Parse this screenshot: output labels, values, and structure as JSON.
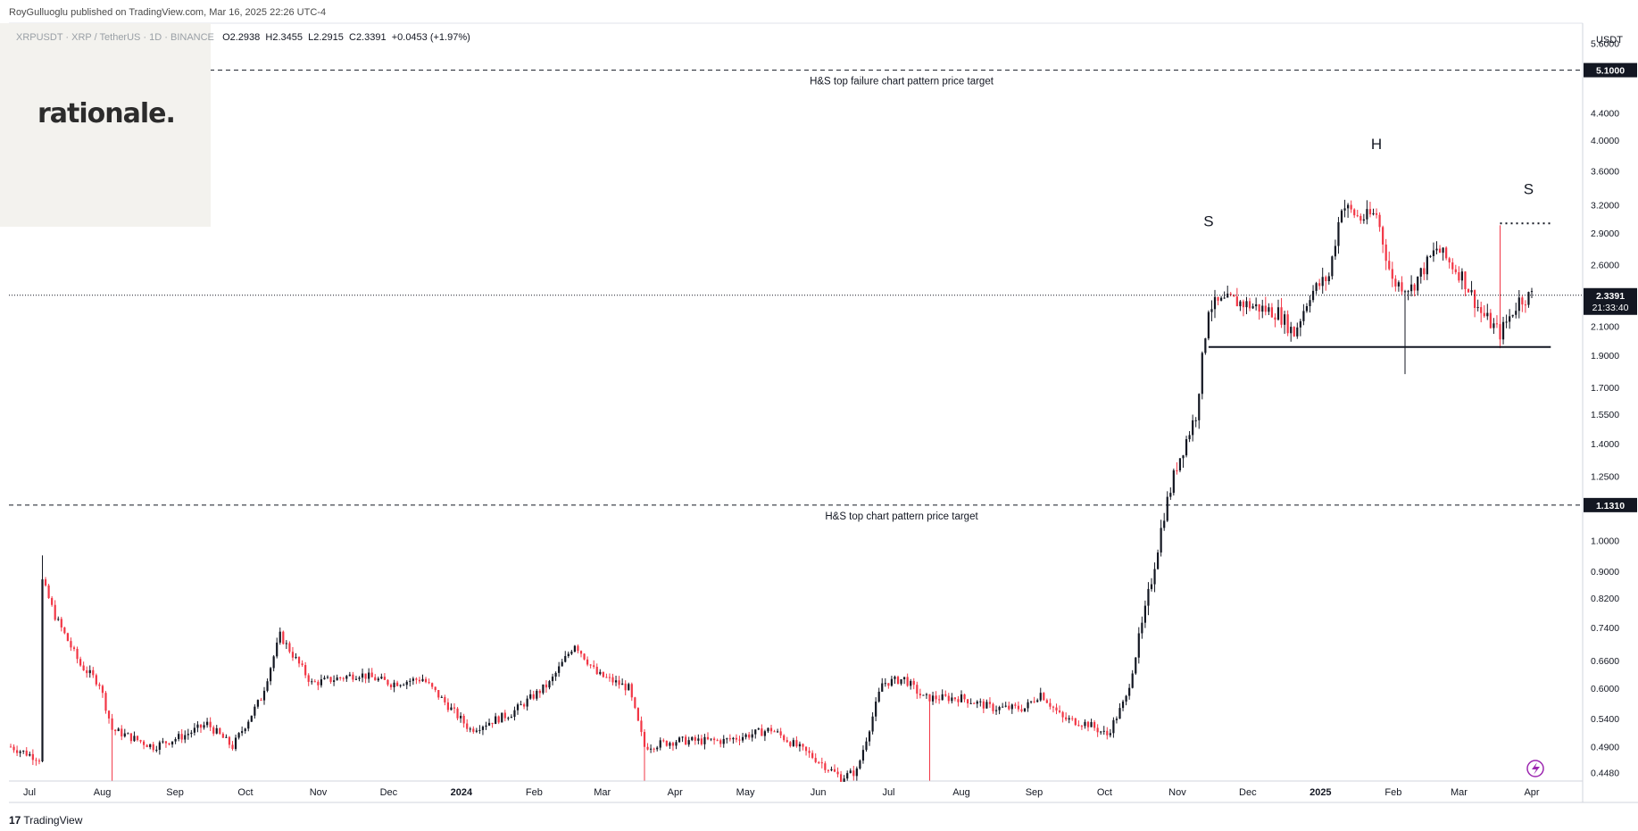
{
  "header": {
    "publisher": "RoyGulluoglu published on TradingView.com, Mar 16, 2025 22:26 UTC-4"
  },
  "symbol": {
    "name": "XRPUSDT · XRP / TetherUS · 1D · BINANCE",
    "open": "O2.2938",
    "high": "H2.3455",
    "low": "L2.2915",
    "close": "C2.3391",
    "change": "+0.0453 (+1.97%)"
  },
  "logo_text": "rationale.",
  "footer": {
    "brand": "TradingView",
    "mark": "17"
  },
  "colors": {
    "up": "#131722",
    "down": "#f23645",
    "accent": "#9c27b0"
  },
  "chart_data": {
    "type": "candlestick",
    "currency": "USDT",
    "y_scale": "log",
    "ylim": [
      0.435,
      6.0
    ],
    "y_ticks": [
      "5.6000",
      "5.1000",
      "4.4000",
      "4.0000",
      "3.6000",
      "3.2000",
      "2.9000",
      "2.6000",
      "2.3000",
      "2.1000",
      "1.9000",
      "1.7000",
      "1.5500",
      "1.4000",
      "1.2500",
      "1.1310",
      "1.0000",
      "0.9000",
      "0.8200",
      "0.7400",
      "0.6600",
      "0.6000",
      "0.5400",
      "0.4900",
      "0.4480"
    ],
    "x_ticks": [
      "Jul",
      "Aug",
      "Sep",
      "Oct",
      "Nov",
      "Dec",
      "2024",
      "Feb",
      "Mar",
      "Apr",
      "May",
      "Jun",
      "Jul",
      "Aug",
      "Sep",
      "Oct",
      "Nov",
      "Dec",
      "2025",
      "Feb",
      "Mar",
      "Apr"
    ],
    "x_tick_bold": [
      "2024",
      "2025"
    ],
    "last_price": "2.3391",
    "countdown": "21:33:40",
    "price_path": [
      [
        0,
        0.49
      ],
      [
        9,
        0.47
      ],
      [
        10,
        0.87
      ],
      [
        14,
        0.77
      ],
      [
        22,
        0.65
      ],
      [
        28,
        0.61
      ],
      [
        32,
        0.52
      ],
      [
        45,
        0.49
      ],
      [
        55,
        0.51
      ],
      [
        62,
        0.53
      ],
      [
        70,
        0.49
      ],
      [
        79,
        0.58
      ],
      [
        85,
        0.72
      ],
      [
        95,
        0.61
      ],
      [
        110,
        0.63
      ],
      [
        120,
        0.61
      ],
      [
        130,
        0.62
      ],
      [
        145,
        0.52
      ],
      [
        158,
        0.55
      ],
      [
        170,
        0.61
      ],
      [
        178,
        0.7
      ],
      [
        185,
        0.63
      ],
      [
        195,
        0.6
      ],
      [
        200,
        0.49
      ],
      [
        210,
        0.5
      ],
      [
        225,
        0.5
      ],
      [
        240,
        0.52
      ],
      [
        254,
        0.47
      ],
      [
        262,
        0.44
      ],
      [
        267,
        0.45
      ],
      [
        275,
        0.61
      ],
      [
        282,
        0.62
      ],
      [
        288,
        0.58
      ],
      [
        300,
        0.58
      ],
      [
        310,
        0.56
      ],
      [
        320,
        0.56
      ],
      [
        325,
        0.59
      ],
      [
        332,
        0.54
      ],
      [
        340,
        0.53
      ],
      [
        346,
        0.51
      ],
      [
        352,
        0.58
      ],
      [
        358,
        0.78
      ],
      [
        364,
        1.1
      ],
      [
        368,
        1.3
      ],
      [
        374,
        1.55
      ],
      [
        378,
        2.25
      ],
      [
        385,
        2.3
      ],
      [
        400,
        2.2
      ],
      [
        405,
        2.05
      ],
      [
        410,
        2.35
      ],
      [
        416,
        2.5
      ],
      [
        420,
        3.2
      ],
      [
        426,
        3.05
      ],
      [
        431,
        3.1
      ],
      [
        436,
        2.45
      ],
      [
        442,
        2.4
      ],
      [
        450,
        2.75
      ],
      [
        458,
        2.5
      ],
      [
        464,
        2.2
      ],
      [
        470,
        2.05
      ],
      [
        476,
        2.3
      ],
      [
        480,
        2.34
      ]
    ],
    "spike_wicks": [
      {
        "d": 10,
        "h": 0.95
      },
      {
        "d": 32,
        "l": 0.43
      },
      {
        "d": 200,
        "l": 0.43
      },
      {
        "d": 267,
        "l": 0.43
      },
      {
        "d": 290,
        "l": 0.43
      },
      {
        "d": 440,
        "l": 1.78
      },
      {
        "d": 470,
        "h": 2.98
      }
    ],
    "levels": [
      {
        "price": 5.1,
        "label": "5.1000",
        "text": "H&S top failure chart pattern price target"
      },
      {
        "price": 1.131,
        "label": "1.1310",
        "text": "H&S top chart pattern price target"
      }
    ],
    "neckline": {
      "price": 1.955,
      "from_day": 378,
      "to_day": 486
    },
    "shoulder_line": {
      "price": 3.0,
      "from_day": 470,
      "to_day": 486
    },
    "pattern_labels": [
      {
        "text": "S",
        "day": 378,
        "price": 2.97
      },
      {
        "text": "H",
        "day": 431,
        "price": 3.88
      },
      {
        "text": "S",
        "day": 479,
        "price": 3.32
      }
    ]
  }
}
